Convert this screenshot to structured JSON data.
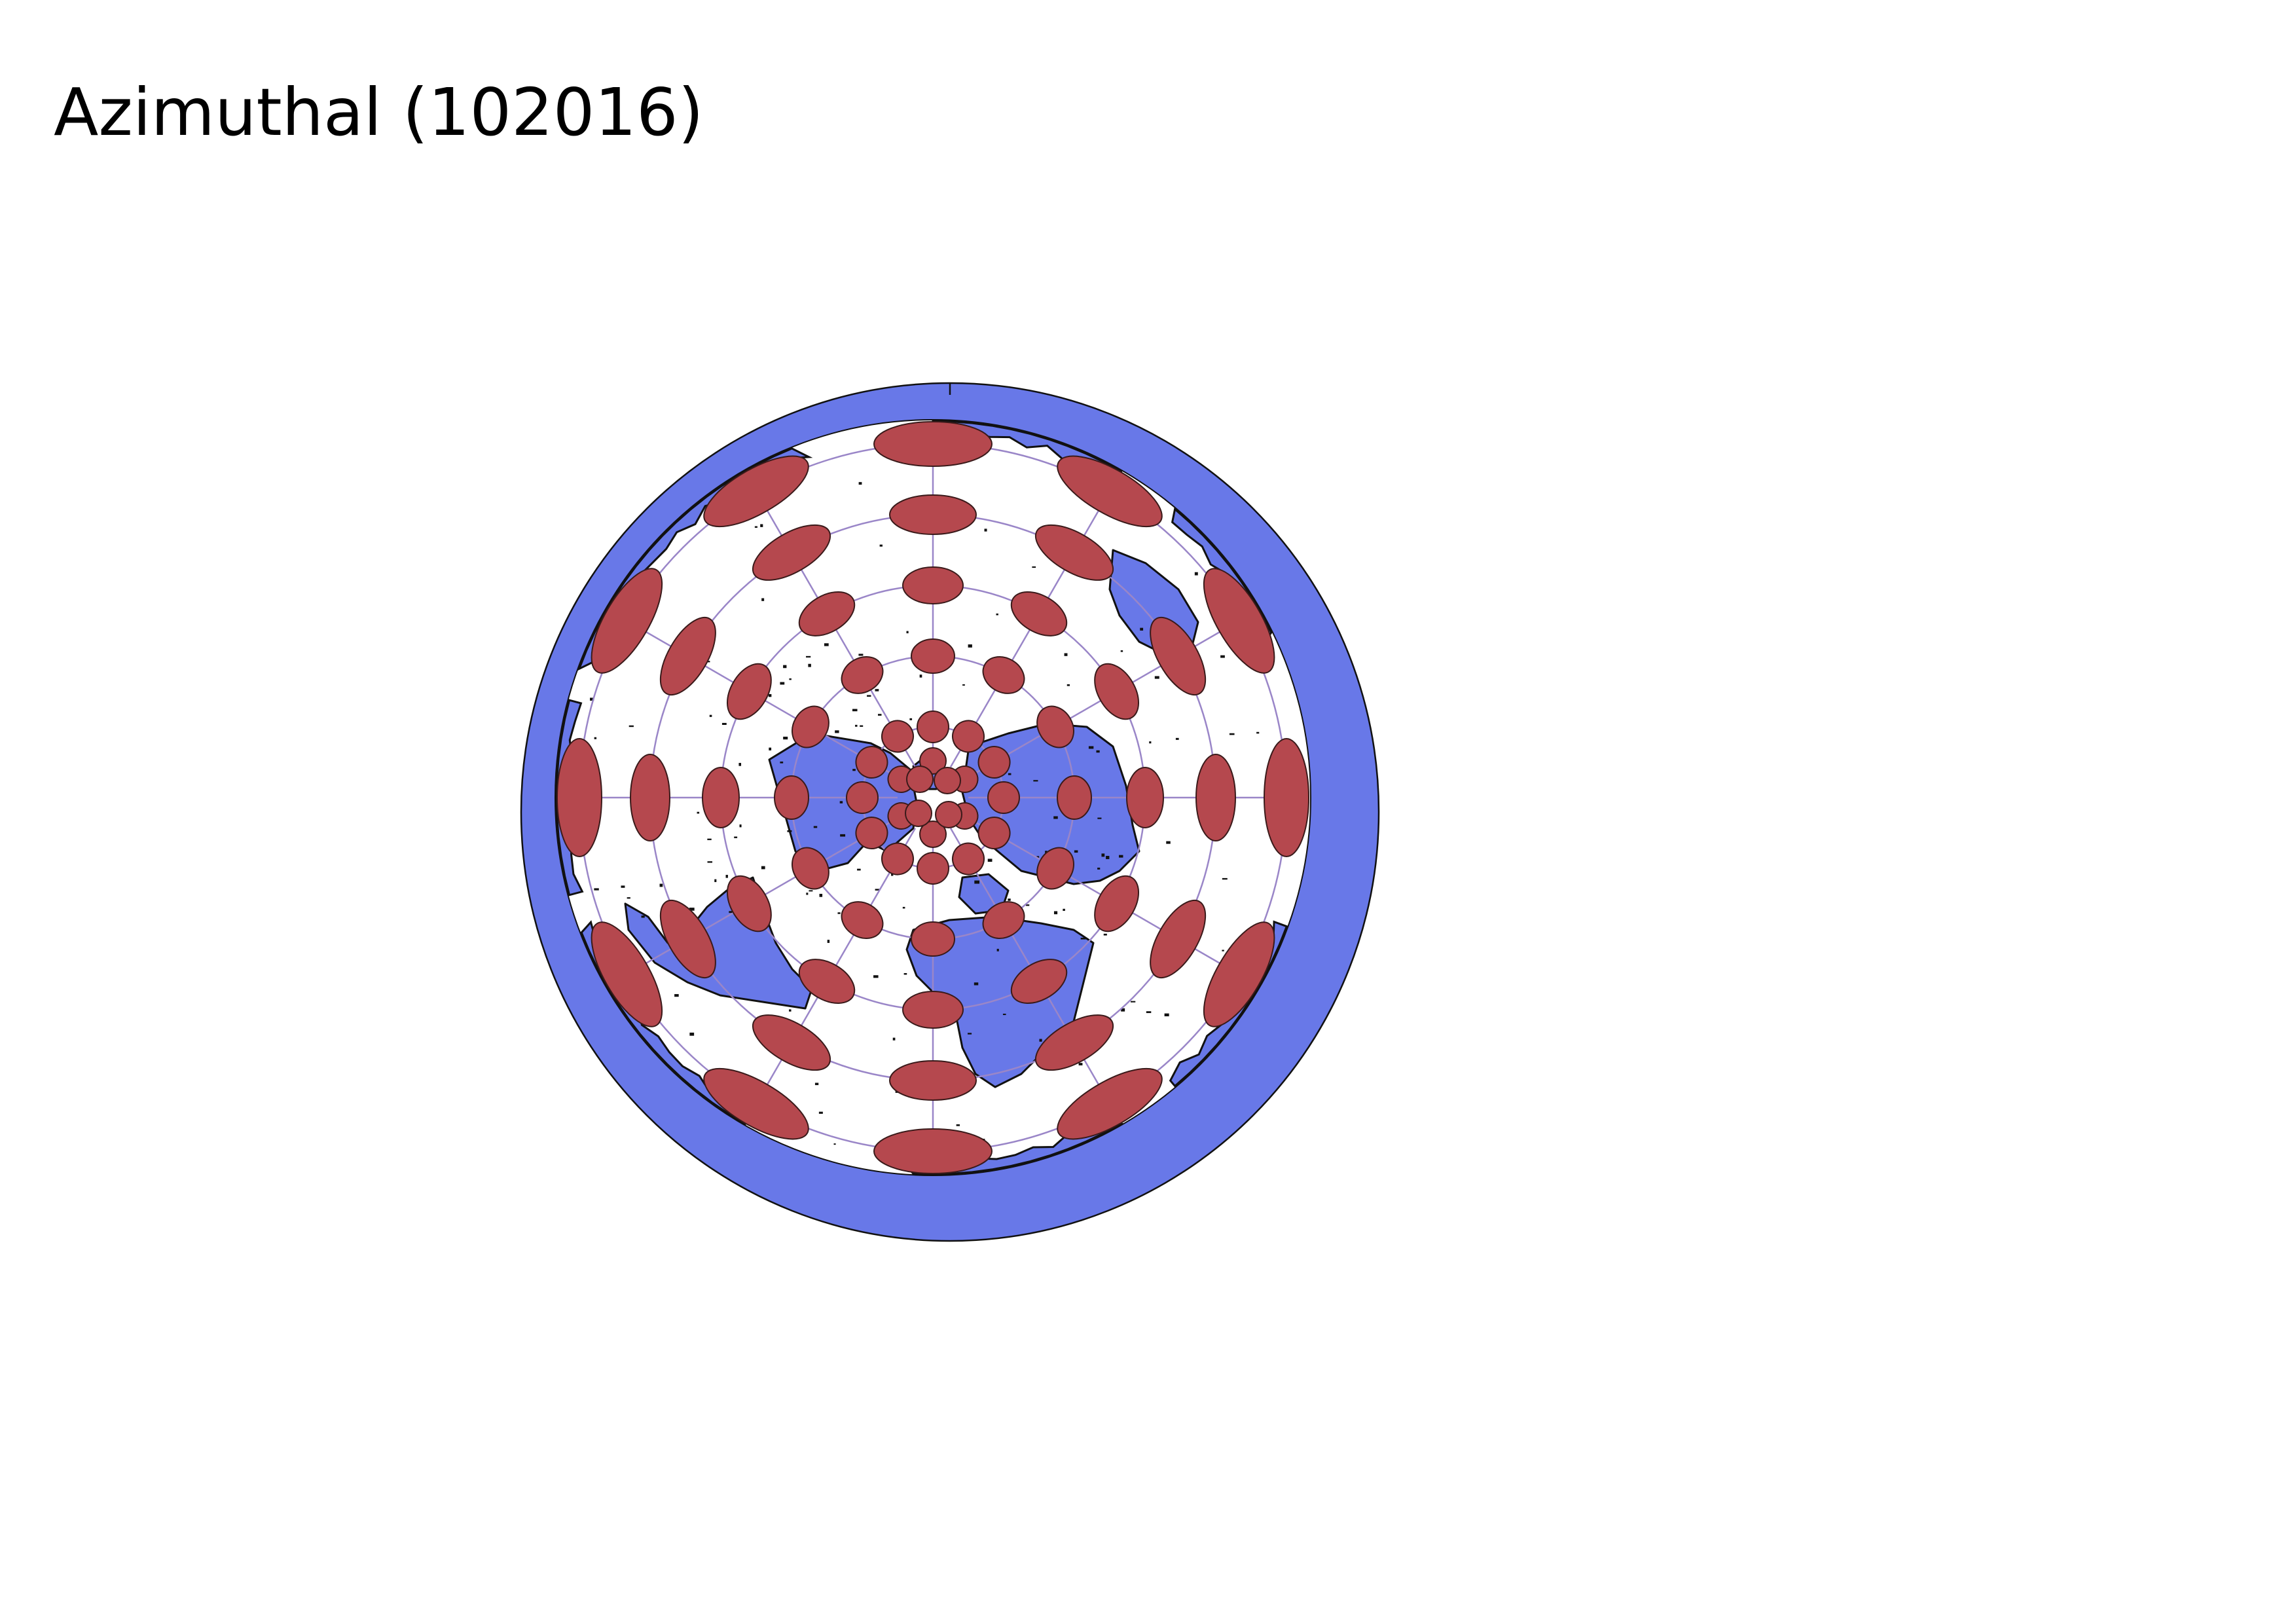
{
  "title": "Azimuthal (102016)",
  "colors": {
    "ocean_ring": "#6878e8",
    "land": "#6878e8",
    "coastline": "#111111",
    "graticule": "#9a86c8",
    "indicatrix": "#b5484e",
    "indicatrix_stroke": "#3a1a1a",
    "background": "#ffffff"
  },
  "map": {
    "projection": "azimuthal equidistant, north-polar",
    "graticule_circles": 5,
    "graticule_meridians": 12,
    "tissot_rings": [
      {
        "ring": 1,
        "count": 6
      },
      {
        "ring": 2,
        "count": 12
      },
      {
        "ring": 3,
        "count": 12
      },
      {
        "ring": 4,
        "count": 12
      },
      {
        "ring": 5,
        "count": 12
      },
      {
        "ring": 6,
        "count": 12
      }
    ]
  }
}
